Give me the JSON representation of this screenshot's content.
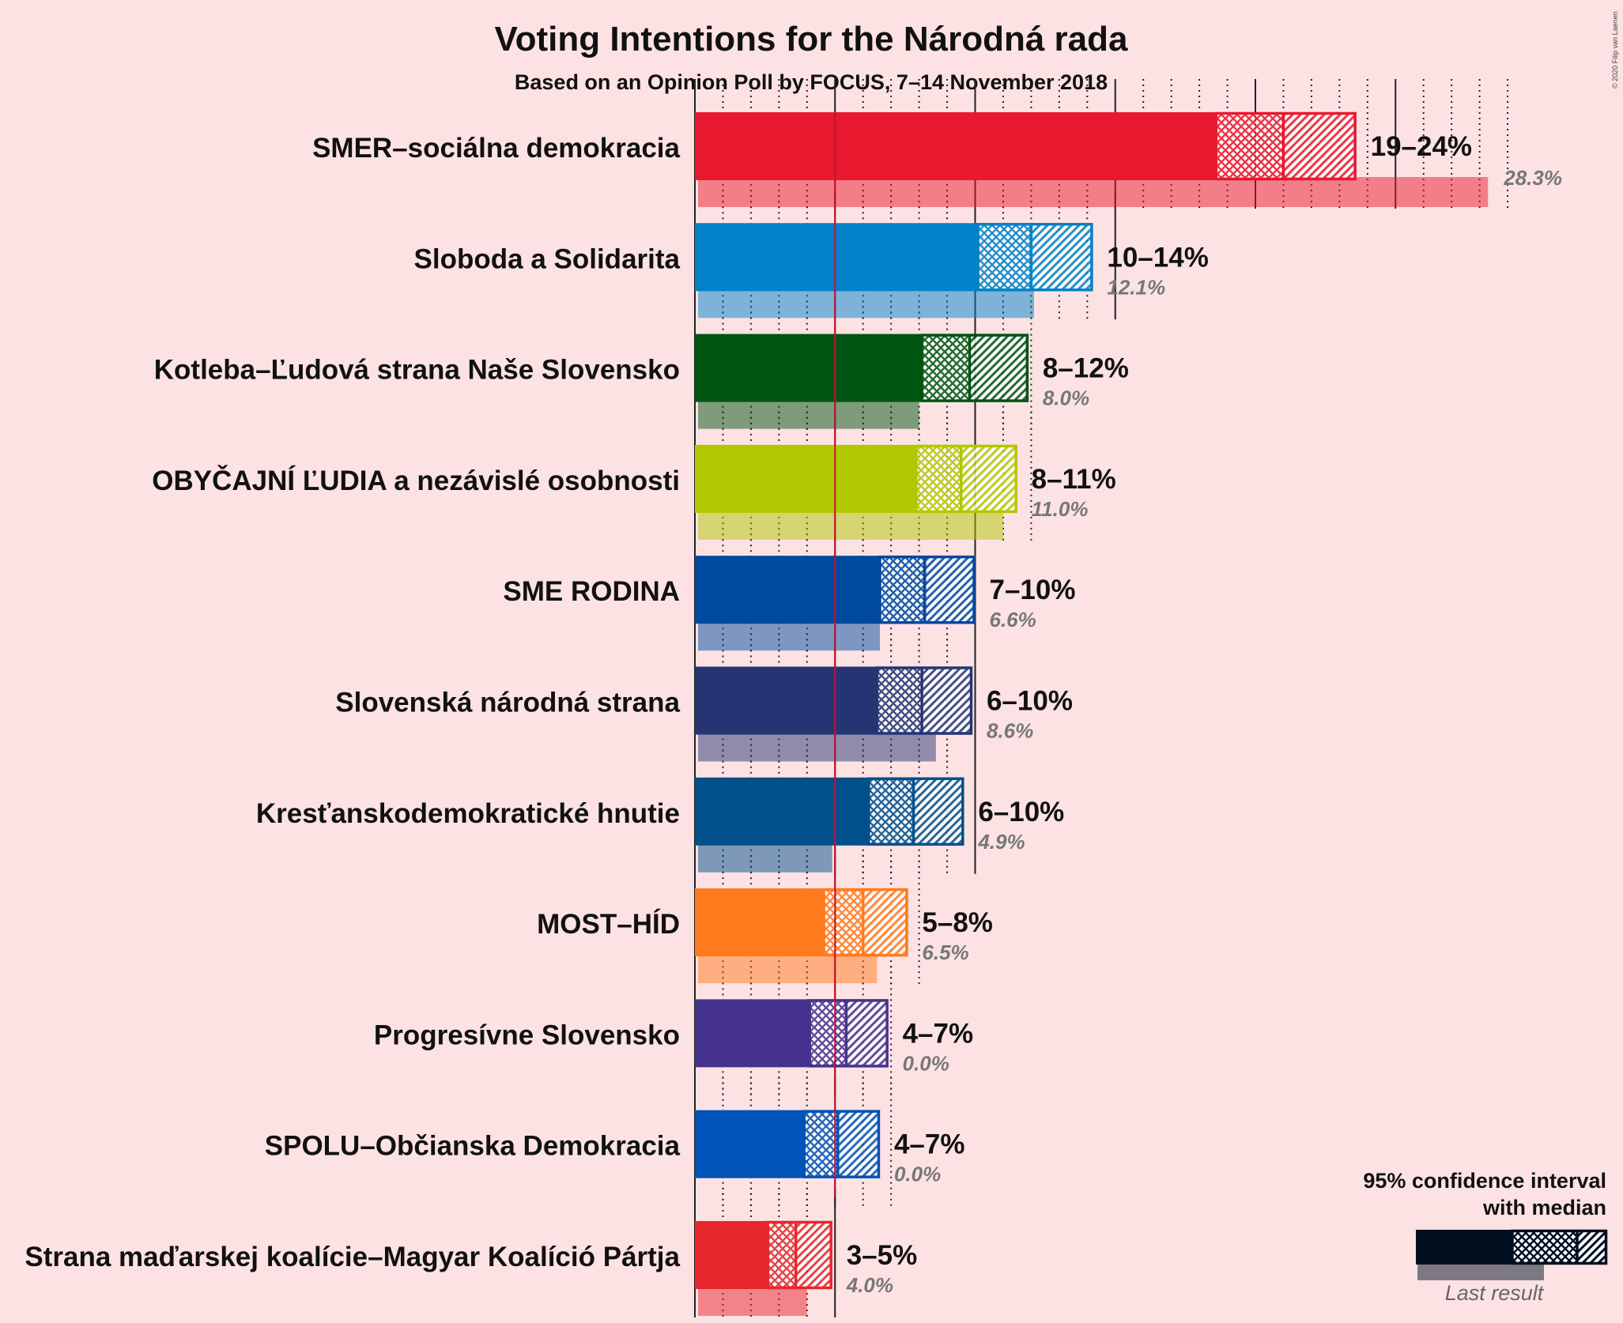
{
  "title": "Voting Intentions for the Národná rada",
  "subtitle": "Based on an Opinion Poll by FOCUS, 7–14 November 2018",
  "copyright": "© 2020 Filip van Laenen",
  "legend": {
    "ci_label_line1": "95% confidence interval",
    "ci_label_line2": "with median",
    "last_result_label": "Last result"
  },
  "chart_data": {
    "type": "bar",
    "orientation": "horizontal",
    "x_unit": "%",
    "xlim": [
      0,
      31
    ],
    "major_gridlines": [
      0,
      5,
      10,
      15,
      20,
      25
    ],
    "threshold_line": 5,
    "parties": [
      {
        "name": "SMER–sociálna demokracia",
        "color": "#e8192f",
        "ci_low": 18.6,
        "median": 21.0,
        "ci_high": 23.6,
        "range_label": "19–24%",
        "last_result": 28.3,
        "last_label": "28.3%"
      },
      {
        "name": "Sloboda a Solidarita",
        "color": "#0081c8",
        "ci_low": 10.1,
        "median": 12.0,
        "ci_high": 14.2,
        "range_label": "10–14%",
        "last_result": 12.1,
        "last_label": "12.1%"
      },
      {
        "name": "Kotleba–Ľudová strana Naše Slovensko",
        "color": "#005412",
        "ci_low": 8.1,
        "median": 9.8,
        "ci_high": 11.9,
        "range_label": "8–12%",
        "last_result": 8.0,
        "last_label": "8.0%"
      },
      {
        "name": "OBYČAJNÍ ĽUDIA a nezávislé osobnosti",
        "color": "#b0c800",
        "ci_low": 7.9,
        "median": 9.5,
        "ci_high": 11.5,
        "range_label": "8–11%",
        "last_result": 11.0,
        "last_label": "11.0%"
      },
      {
        "name": "SME RODINA",
        "color": "#0049a0",
        "ci_low": 6.6,
        "median": 8.2,
        "ci_high": 10.0,
        "range_label": "7–10%",
        "last_result": 6.6,
        "last_label": "6.6%"
      },
      {
        "name": "Slovenská národná strana",
        "color": "#253574",
        "ci_low": 6.5,
        "median": 8.1,
        "ci_high": 9.9,
        "range_label": "6–10%",
        "last_result": 8.6,
        "last_label": "8.6%"
      },
      {
        "name": "Kresťanskodemokratické hnutie",
        "color": "#00508c",
        "ci_low": 6.2,
        "median": 7.8,
        "ci_high": 9.6,
        "range_label": "6–10%",
        "last_result": 4.9,
        "last_label": "4.9%"
      },
      {
        "name": "MOST–HÍD",
        "color": "#ff7a1c",
        "ci_low": 4.6,
        "median": 6.0,
        "ci_high": 7.6,
        "range_label": "5–8%",
        "last_result": 6.5,
        "last_label": "6.5%"
      },
      {
        "name": "Progresívne Slovensko",
        "color": "#46338f",
        "ci_low": 4.1,
        "median": 5.4,
        "ci_high": 6.9,
        "range_label": "4–7%",
        "last_result": 0.0,
        "last_label": "0.0%"
      },
      {
        "name": "SPOLU–Občianska Demokracia",
        "color": "#0053b7",
        "ci_low": 3.9,
        "median": 5.1,
        "ci_high": 6.6,
        "range_label": "4–7%",
        "last_result": 0.0,
        "last_label": "0.0%"
      },
      {
        "name": "Strana maďarskej koalície–Magyar Koalíció Pártja",
        "color": "#e8262d",
        "ci_low": 2.6,
        "median": 3.6,
        "ci_high": 4.9,
        "range_label": "3–5%",
        "last_result": 4.0,
        "last_label": "4.0%"
      }
    ]
  }
}
